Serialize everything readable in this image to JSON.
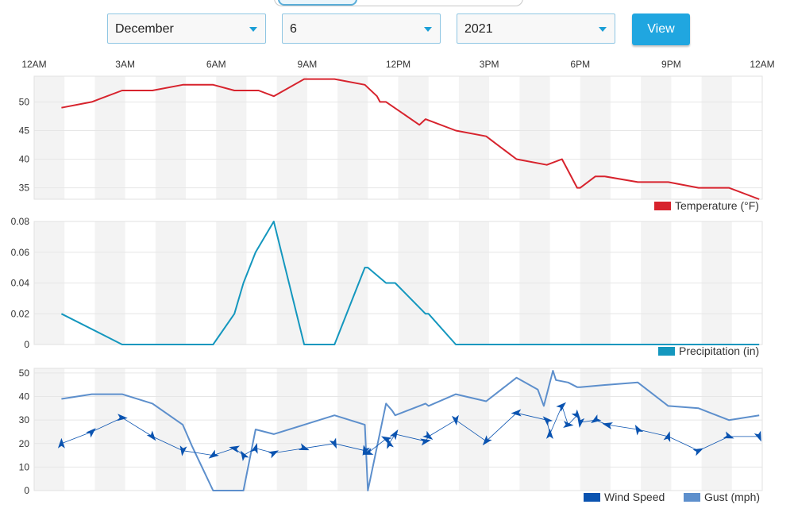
{
  "controls": {
    "month": "December",
    "day": "6",
    "year": "2021",
    "view_label": "View"
  },
  "colors": {
    "temperature": "#d7232d",
    "precipitation": "#1497be",
    "wind_speed": "#0a53b0",
    "gust": "#5d8fcc",
    "band": "#f3f3f3",
    "grid": "#e6e6e6"
  },
  "chart_data": [
    {
      "type": "line",
      "title": "",
      "x_ticks": [
        "12AM",
        "3AM",
        "6AM",
        "9AM",
        "12PM",
        "3PM",
        "6PM",
        "9PM",
        "12AM"
      ],
      "xlim_hours": [
        0,
        24
      ],
      "ylim": [
        33,
        54.5
      ],
      "y_ticks": [
        35,
        40,
        45,
        50
      ],
      "legend_position": "bottom-right",
      "series": [
        {
          "name": "Temperature (°F)",
          "x": [
            0.9,
            1.9,
            2.9,
            3.9,
            4.9,
            5.9,
            6.6,
            7.4,
            7.9,
            8.9,
            9.9,
            10.9,
            11.3,
            11.4,
            11.6,
            12.7,
            12.9,
            13.9,
            14.9,
            15.9,
            16.9,
            17.4,
            17.6,
            17.9,
            18.0,
            18.5,
            18.8,
            19.9,
            20.9,
            21.9,
            22.9,
            23.9
          ],
          "values": [
            49,
            50,
            52,
            52,
            53,
            53,
            52,
            52,
            51,
            54,
            54,
            53,
            51,
            50,
            50,
            46,
            47,
            45,
            44,
            40,
            39,
            40,
            38,
            35,
            35,
            37,
            37,
            36,
            36,
            35,
            35,
            33
          ]
        }
      ]
    },
    {
      "type": "line",
      "x_ticks": [],
      "xlim_hours": [
        0,
        24
      ],
      "ylim": [
        0,
        0.08
      ],
      "y_ticks": [
        0,
        0.02,
        0.04,
        0.06,
        0.08
      ],
      "y_tick_labels": [
        "0",
        "0.02",
        "0.04",
        "0.06",
        "0.08"
      ],
      "legend_position": "bottom-right",
      "series": [
        {
          "name": "Precipitation (in)",
          "x": [
            0.9,
            2.9,
            5.9,
            6.6,
            6.9,
            7.3,
            7.9,
            8.9,
            9.9,
            10.9,
            11.0,
            11.6,
            11.9,
            12.9,
            13.0,
            13.9,
            23.9
          ],
          "values": [
            0.02,
            0,
            0,
            0.02,
            0.04,
            0.06,
            0.08,
            0,
            0,
            0.05,
            0.05,
            0.04,
            0.04,
            0.02,
            0.02,
            0,
            0
          ]
        }
      ]
    },
    {
      "type": "line",
      "x_ticks": [],
      "xlim_hours": [
        0,
        24
      ],
      "ylim": [
        0,
        52
      ],
      "y_ticks": [
        0,
        10,
        20,
        30,
        40,
        50
      ],
      "legend_position": "bottom-right",
      "series": [
        {
          "name": "Wind Speed",
          "x": [
            0.9,
            1.9,
            2.9,
            3.9,
            4.9,
            5.9,
            6.6,
            6.9,
            7.3,
            7.9,
            8.9,
            9.9,
            10.9,
            11.0,
            11.6,
            11.7,
            11.9,
            12.9,
            13.0,
            13.9,
            14.9,
            15.9,
            16.9,
            17.0,
            17.4,
            17.6,
            17.9,
            18.0,
            18.5,
            18.9,
            19.9,
            20.9,
            21.9,
            22.9,
            23.9
          ],
          "values": [
            20,
            25,
            31,
            23,
            17,
            15,
            18,
            15,
            18,
            16,
            18,
            20,
            17,
            16,
            22,
            20,
            24,
            21,
            23,
            30,
            21,
            33,
            30,
            24,
            36,
            28,
            32,
            29,
            30,
            28,
            26,
            23,
            17,
            23,
            23
          ],
          "marker": "arrow"
        },
        {
          "name": "Gust (mph)",
          "x": [
            0.9,
            1.9,
            2.9,
            3.9,
            4.9,
            5.2,
            5.9,
            6.9,
            7.3,
            7.9,
            8.9,
            9.9,
            10.9,
            11.0,
            11.6,
            11.8,
            11.9,
            12.9,
            13.0,
            13.9,
            14.9,
            15.9,
            16.6,
            16.8,
            17.1,
            17.2,
            17.6,
            17.9,
            18.0,
            18.9,
            19.9,
            20.9,
            21.9,
            22.9,
            23.9
          ],
          "values": [
            39,
            41,
            41,
            37,
            28,
            19,
            0,
            0,
            26,
            24,
            28,
            32,
            28,
            0,
            37,
            34,
            32,
            37,
            36,
            41,
            38,
            48,
            43,
            36,
            51,
            47,
            46,
            44,
            44,
            45,
            46,
            36,
            35,
            30,
            32
          ]
        }
      ]
    }
  ]
}
